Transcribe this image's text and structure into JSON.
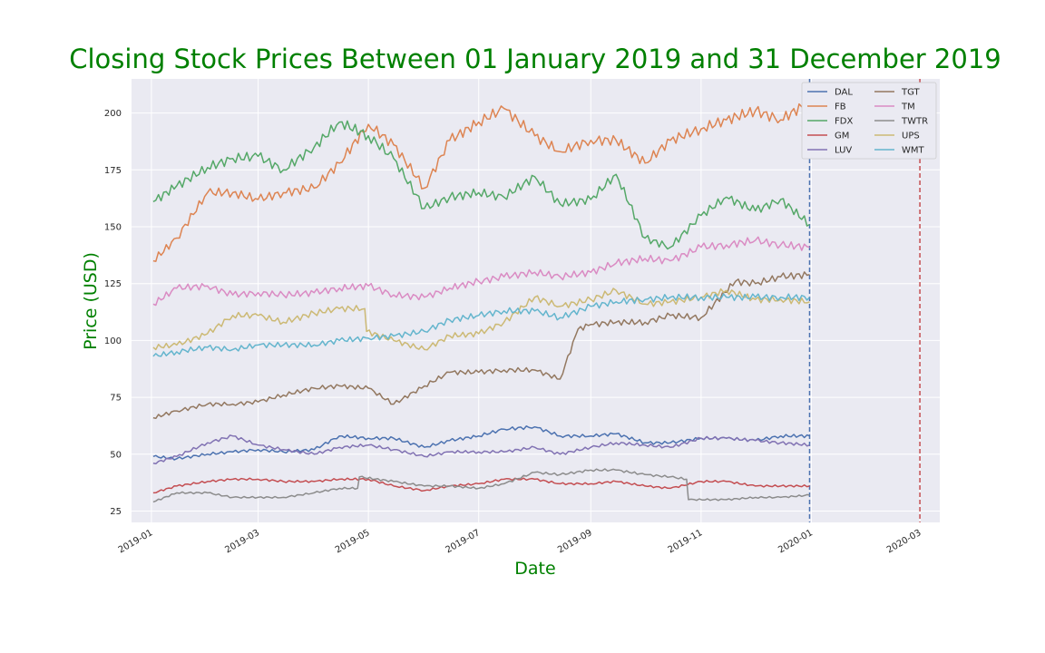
{
  "chart_data": {
    "type": "line",
    "title": "Closing Stock Prices Between 01 January 2019 and 31 December 2019",
    "xlabel": "Date",
    "ylabel": "Price (USD)",
    "xlim": [
      "2018-12-21",
      "2020-03-12"
    ],
    "ylim": [
      20,
      215
    ],
    "x_ticks": [
      "2019-01",
      "2019-03",
      "2019-05",
      "2019-07",
      "2019-09",
      "2019-11",
      "2020-01",
      "2020-03"
    ],
    "y_ticks": [
      25,
      50,
      75,
      100,
      125,
      150,
      175,
      200
    ],
    "grid": true,
    "legend": "top-right, 2 columns",
    "vertical_lines": [
      {
        "x": "2019-12-31",
        "style": "dashed",
        "color": "#4c72b0"
      },
      {
        "x": "2020-03-01",
        "style": "dashed",
        "color": "#c44e52"
      }
    ],
    "series": [
      {
        "name": "DAL",
        "color": "#4c72b0",
        "points": [
          [
            "2019-01-02",
            49
          ],
          [
            "2019-01-15",
            48
          ],
          [
            "2019-02-01",
            50
          ],
          [
            "2019-02-15",
            51
          ],
          [
            "2019-03-01",
            52
          ],
          [
            "2019-03-15",
            51
          ],
          [
            "2019-04-01",
            52
          ],
          [
            "2019-04-15",
            58
          ],
          [
            "2019-05-01",
            57
          ],
          [
            "2019-05-15",
            57
          ],
          [
            "2019-06-01",
            53
          ],
          [
            "2019-06-15",
            56
          ],
          [
            "2019-07-01",
            58
          ],
          [
            "2019-07-15",
            61
          ],
          [
            "2019-08-01",
            62
          ],
          [
            "2019-08-15",
            58
          ],
          [
            "2019-09-01",
            58
          ],
          [
            "2019-09-15",
            59
          ],
          [
            "2019-10-01",
            55
          ],
          [
            "2019-10-15",
            55
          ],
          [
            "2019-11-01",
            57
          ],
          [
            "2019-11-15",
            57
          ],
          [
            "2019-12-01",
            56
          ],
          [
            "2019-12-15",
            58
          ],
          [
            "2019-12-31",
            58
          ]
        ]
      },
      {
        "name": "FB",
        "color": "#dd8452",
        "points": [
          [
            "2019-01-02",
            135
          ],
          [
            "2019-01-15",
            145
          ],
          [
            "2019-02-01",
            165
          ],
          [
            "2019-02-15",
            165
          ],
          [
            "2019-03-01",
            162
          ],
          [
            "2019-03-15",
            165
          ],
          [
            "2019-04-01",
            167
          ],
          [
            "2019-04-15",
            178
          ],
          [
            "2019-05-01",
            195
          ],
          [
            "2019-05-15",
            186
          ],
          [
            "2019-06-01",
            167
          ],
          [
            "2019-06-15",
            188
          ],
          [
            "2019-07-01",
            196
          ],
          [
            "2019-07-15",
            202
          ],
          [
            "2019-08-01",
            190
          ],
          [
            "2019-08-15",
            183
          ],
          [
            "2019-09-01",
            188
          ],
          [
            "2019-09-15",
            188
          ],
          [
            "2019-10-01",
            178
          ],
          [
            "2019-10-15",
            188
          ],
          [
            "2019-11-01",
            193
          ],
          [
            "2019-11-15",
            197
          ],
          [
            "2019-12-01",
            201
          ],
          [
            "2019-12-15",
            197
          ],
          [
            "2019-12-31",
            205
          ]
        ]
      },
      {
        "name": "FDX",
        "color": "#55a868",
        "points": [
          [
            "2019-01-02",
            161
          ],
          [
            "2019-01-15",
            168
          ],
          [
            "2019-02-01",
            176
          ],
          [
            "2019-02-15",
            180
          ],
          [
            "2019-03-01",
            181
          ],
          [
            "2019-03-15",
            175
          ],
          [
            "2019-04-01",
            185
          ],
          [
            "2019-04-15",
            196
          ],
          [
            "2019-05-01",
            190
          ],
          [
            "2019-05-15",
            180
          ],
          [
            "2019-06-01",
            158
          ],
          [
            "2019-06-15",
            163
          ],
          [
            "2019-07-01",
            165
          ],
          [
            "2019-07-15",
            163
          ],
          [
            "2019-08-01",
            172
          ],
          [
            "2019-08-15",
            160
          ],
          [
            "2019-09-01",
            162
          ],
          [
            "2019-09-15",
            173
          ],
          [
            "2019-10-01",
            145
          ],
          [
            "2019-10-15",
            141
          ],
          [
            "2019-11-01",
            155
          ],
          [
            "2019-11-15",
            163
          ],
          [
            "2019-12-01",
            157
          ],
          [
            "2019-12-15",
            162
          ],
          [
            "2019-12-31",
            151
          ]
        ]
      },
      {
        "name": "GM",
        "color": "#c44e52",
        "points": [
          [
            "2019-01-02",
            33
          ],
          [
            "2019-01-15",
            36
          ],
          [
            "2019-02-01",
            38
          ],
          [
            "2019-02-15",
            39
          ],
          [
            "2019-03-01",
            39
          ],
          [
            "2019-03-15",
            38
          ],
          [
            "2019-04-01",
            38
          ],
          [
            "2019-04-15",
            39
          ],
          [
            "2019-05-01",
            39
          ],
          [
            "2019-05-15",
            36
          ],
          [
            "2019-06-01",
            34
          ],
          [
            "2019-06-15",
            36
          ],
          [
            "2019-07-01",
            37
          ],
          [
            "2019-07-15",
            39
          ],
          [
            "2019-08-01",
            39
          ],
          [
            "2019-08-15",
            37
          ],
          [
            "2019-09-01",
            37
          ],
          [
            "2019-09-15",
            38
          ],
          [
            "2019-10-01",
            36
          ],
          [
            "2019-10-15",
            35
          ],
          [
            "2019-11-01",
            38
          ],
          [
            "2019-11-15",
            38
          ],
          [
            "2019-12-01",
            36
          ],
          [
            "2019-12-15",
            36
          ],
          [
            "2019-12-31",
            36
          ]
        ]
      },
      {
        "name": "LUV",
        "color": "#8172b3",
        "points": [
          [
            "2019-01-02",
            46
          ],
          [
            "2019-01-15",
            49
          ],
          [
            "2019-02-01",
            55
          ],
          [
            "2019-02-15",
            58
          ],
          [
            "2019-03-01",
            54
          ],
          [
            "2019-03-15",
            52
          ],
          [
            "2019-04-01",
            50
          ],
          [
            "2019-04-15",
            53
          ],
          [
            "2019-05-01",
            54
          ],
          [
            "2019-05-15",
            52
          ],
          [
            "2019-06-01",
            49
          ],
          [
            "2019-06-15",
            51
          ],
          [
            "2019-07-01",
            51
          ],
          [
            "2019-07-15",
            51
          ],
          [
            "2019-08-01",
            53
          ],
          [
            "2019-08-15",
            50
          ],
          [
            "2019-09-01",
            53
          ],
          [
            "2019-09-15",
            55
          ],
          [
            "2019-10-01",
            54
          ],
          [
            "2019-10-15",
            53
          ],
          [
            "2019-11-01",
            57
          ],
          [
            "2019-11-15",
            57
          ],
          [
            "2019-12-01",
            56
          ],
          [
            "2019-12-15",
            55
          ],
          [
            "2019-12-31",
            54
          ]
        ]
      },
      {
        "name": "TGT",
        "color": "#937860",
        "points": [
          [
            "2019-01-02",
            66
          ],
          [
            "2019-01-15",
            69
          ],
          [
            "2019-02-01",
            72
          ],
          [
            "2019-02-15",
            72
          ],
          [
            "2019-03-01",
            73
          ],
          [
            "2019-03-15",
            76
          ],
          [
            "2019-04-01",
            79
          ],
          [
            "2019-04-15",
            80
          ],
          [
            "2019-05-01",
            79
          ],
          [
            "2019-05-15",
            72
          ],
          [
            "2019-06-01",
            80
          ],
          [
            "2019-06-15",
            86
          ],
          [
            "2019-07-01",
            86
          ],
          [
            "2019-07-15",
            87
          ],
          [
            "2019-08-01",
            87
          ],
          [
            "2019-08-15",
            83
          ],
          [
            "2019-08-25",
            105
          ],
          [
            "2019-09-01",
            107
          ],
          [
            "2019-09-15",
            108
          ],
          [
            "2019-10-01",
            108
          ],
          [
            "2019-10-15",
            111
          ],
          [
            "2019-11-01",
            110
          ],
          [
            "2019-11-20",
            126
          ],
          [
            "2019-12-01",
            125
          ],
          [
            "2019-12-15",
            128
          ],
          [
            "2019-12-31",
            129
          ]
        ]
      },
      {
        "name": "TM",
        "color": "#da8bc3",
        "points": [
          [
            "2019-01-02",
            116
          ],
          [
            "2019-01-15",
            123
          ],
          [
            "2019-02-01",
            124
          ],
          [
            "2019-02-15",
            120
          ],
          [
            "2019-03-01",
            121
          ],
          [
            "2019-03-15",
            120
          ],
          [
            "2019-04-01",
            121
          ],
          [
            "2019-04-15",
            123
          ],
          [
            "2019-05-01",
            124
          ],
          [
            "2019-05-15",
            120
          ],
          [
            "2019-06-01",
            119
          ],
          [
            "2019-06-15",
            123
          ],
          [
            "2019-07-01",
            126
          ],
          [
            "2019-07-15",
            128
          ],
          [
            "2019-08-01",
            130
          ],
          [
            "2019-08-15",
            128
          ],
          [
            "2019-09-01",
            130
          ],
          [
            "2019-09-15",
            134
          ],
          [
            "2019-10-01",
            136
          ],
          [
            "2019-10-15",
            135
          ],
          [
            "2019-11-01",
            141
          ],
          [
            "2019-11-15",
            142
          ],
          [
            "2019-12-01",
            144
          ],
          [
            "2019-12-15",
            142
          ],
          [
            "2019-12-31",
            141
          ]
        ]
      },
      {
        "name": "TWTR",
        "color": "#8c8c8c",
        "points": [
          [
            "2019-01-02",
            29
          ],
          [
            "2019-01-15",
            33
          ],
          [
            "2019-02-01",
            33
          ],
          [
            "2019-02-15",
            31
          ],
          [
            "2019-03-01",
            31
          ],
          [
            "2019-03-15",
            31
          ],
          [
            "2019-04-01",
            33
          ],
          [
            "2019-04-15",
            35
          ],
          [
            "2019-04-25",
            35
          ],
          [
            "2019-04-26",
            40
          ],
          [
            "2019-05-15",
            38
          ],
          [
            "2019-06-01",
            36
          ],
          [
            "2019-06-15",
            36
          ],
          [
            "2019-07-01",
            35
          ],
          [
            "2019-07-15",
            37
          ],
          [
            "2019-08-01",
            42
          ],
          [
            "2019-08-15",
            41
          ],
          [
            "2019-09-01",
            43
          ],
          [
            "2019-09-15",
            43
          ],
          [
            "2019-10-01",
            41
          ],
          [
            "2019-10-15",
            40
          ],
          [
            "2019-10-24",
            39
          ],
          [
            "2019-10-25",
            30
          ],
          [
            "2019-11-15",
            30
          ],
          [
            "2019-12-01",
            31
          ],
          [
            "2019-12-15",
            31
          ],
          [
            "2019-12-31",
            32
          ]
        ]
      },
      {
        "name": "UPS",
        "color": "#ccb974",
        "points": [
          [
            "2019-01-02",
            97
          ],
          [
            "2019-01-15",
            98
          ],
          [
            "2019-02-01",
            103
          ],
          [
            "2019-02-15",
            111
          ],
          [
            "2019-03-01",
            111
          ],
          [
            "2019-03-15",
            108
          ],
          [
            "2019-04-01",
            112
          ],
          [
            "2019-04-15",
            114
          ],
          [
            "2019-04-29",
            114
          ],
          [
            "2019-04-30",
            104
          ],
          [
            "2019-05-15",
            100
          ],
          [
            "2019-06-01",
            96
          ],
          [
            "2019-06-15",
            102
          ],
          [
            "2019-07-01",
            103
          ],
          [
            "2019-07-15",
            108
          ],
          [
            "2019-08-01",
            119
          ],
          [
            "2019-08-15",
            115
          ],
          [
            "2019-09-01",
            118
          ],
          [
            "2019-09-15",
            122
          ],
          [
            "2019-10-01",
            116
          ],
          [
            "2019-10-15",
            117
          ],
          [
            "2019-11-01",
            119
          ],
          [
            "2019-11-15",
            122
          ],
          [
            "2019-12-01",
            118
          ],
          [
            "2019-12-15",
            118
          ],
          [
            "2019-12-31",
            117
          ]
        ]
      },
      {
        "name": "WMT",
        "color": "#64b5cd",
        "points": [
          [
            "2019-01-02",
            93
          ],
          [
            "2019-01-15",
            95
          ],
          [
            "2019-02-01",
            97
          ],
          [
            "2019-02-15",
            96
          ],
          [
            "2019-03-01",
            98
          ],
          [
            "2019-03-15",
            98
          ],
          [
            "2019-04-01",
            98
          ],
          [
            "2019-04-15",
            100
          ],
          [
            "2019-05-01",
            101
          ],
          [
            "2019-05-15",
            102
          ],
          [
            "2019-06-01",
            104
          ],
          [
            "2019-06-15",
            109
          ],
          [
            "2019-07-01",
            111
          ],
          [
            "2019-07-15",
            113
          ],
          [
            "2019-08-01",
            113
          ],
          [
            "2019-08-15",
            110
          ],
          [
            "2019-09-01",
            115
          ],
          [
            "2019-09-15",
            117
          ],
          [
            "2019-10-01",
            118
          ],
          [
            "2019-10-15",
            119
          ],
          [
            "2019-11-01",
            119
          ],
          [
            "2019-11-15",
            119
          ],
          [
            "2019-12-01",
            119
          ],
          [
            "2019-12-15",
            119
          ],
          [
            "2019-12-31",
            119
          ]
        ]
      }
    ]
  }
}
